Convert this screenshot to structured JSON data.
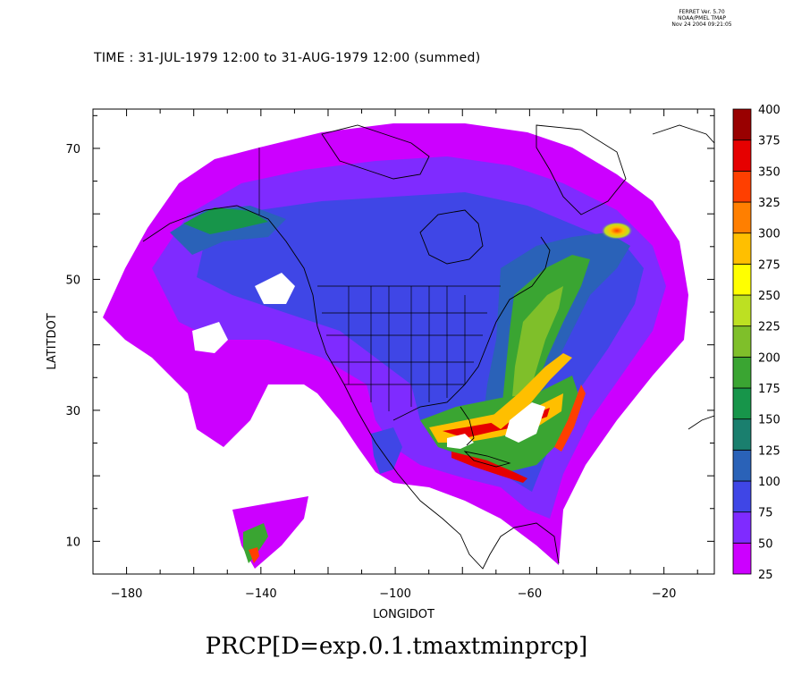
{
  "stamp": {
    "line1": "FERRET Ver. 5.70",
    "line2": "NOAA/PMEL TMAP",
    "line3": "Nov 24 2004 09:21:05"
  },
  "time_label": "TIME : 31-JUL-1979 12:00 to 31-AUG-1979 12:00 (summed)",
  "colors": {
    "levels": [
      "#cc00ff",
      "#7f2bff",
      "#3f46e6",
      "#2a62b8",
      "#1a7f6e",
      "#17954a",
      "#3aa532",
      "#7fbf2a",
      "#bde022",
      "#ffff00",
      "#ffbf00",
      "#ff7f00",
      "#ff3f00",
      "#e60000",
      "#990000"
    ]
  },
  "chart_data": {
    "type": "heatmap",
    "title": "PRCP[D=exp.0.1.tmaxtminprcp]",
    "xlabel": "LONGIDOT",
    "ylabel": "LATITDOT",
    "xlim": [
      -190,
      -5
    ],
    "ylim": [
      5,
      76
    ],
    "xticks": [
      -180,
      -140,
      -100,
      -60,
      -20
    ],
    "yticks": [
      10,
      30,
      50,
      70
    ],
    "xtick_labels": [
      "−180",
      "−140",
      "−100",
      "−60",
      "−20"
    ],
    "ytick_labels": [
      "10",
      "30",
      "50",
      "70"
    ],
    "colorbar_levels": [
      25,
      50,
      75,
      100,
      125,
      150,
      175,
      200,
      225,
      250,
      275,
      300,
      325,
      350,
      375,
      400
    ],
    "colorbar_labels": [
      "25",
      "50",
      "75",
      "100",
      "125",
      "150",
      "175",
      "200",
      "225",
      "250",
      "275",
      "300",
      "325",
      "350",
      "375",
      "400"
    ],
    "colorbar_range": [
      25,
      400
    ],
    "summary": "Monthly summed precipitation over North America and adjacent oceans; maxima above 325 along the Gulf of Mexico coast, western Atlantic storm track, Caribbean, and near 55N 30W"
  }
}
